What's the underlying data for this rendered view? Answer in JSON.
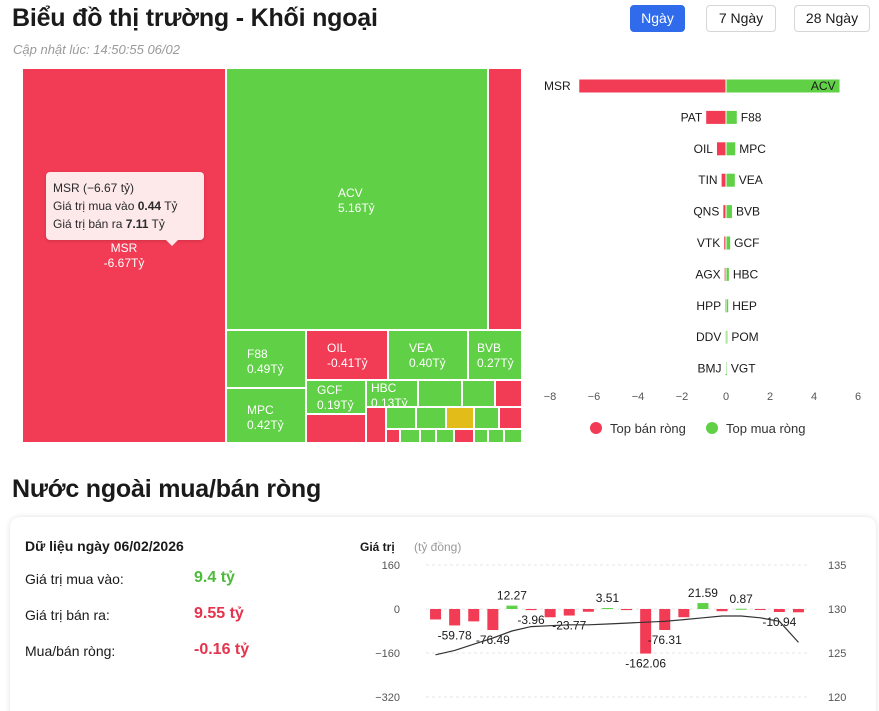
{
  "header": {
    "title": "Biểu đồ thị trường - Khối ngoại",
    "update_label": "Cập nhật lúc:",
    "update_time": "14:50:55 06/02",
    "periods": [
      "Ngày",
      "7 Ngày",
      "28 Ngày"
    ],
    "active_period": "Ngày"
  },
  "colors": {
    "sell": "#f23b54",
    "buy": "#60d046",
    "neutral": "#e2bd1a",
    "accent": "#2f6bea"
  },
  "treemap": {
    "tiles": [
      {
        "label": "MSR",
        "value": "-6.67Tỷ",
        "side": "sell"
      },
      {
        "label": "ACV",
        "value": "5.16Tỷ",
        "side": "buy"
      },
      {
        "label": "",
        "value": "",
        "side": "sell"
      },
      {
        "label": "F88",
        "value": "0.49Tỷ",
        "side": "buy"
      },
      {
        "label": "MPC",
        "value": "0.42Tỷ",
        "side": "buy"
      },
      {
        "label": "OIL",
        "value": "-0.41Tỷ",
        "side": "sell"
      },
      {
        "label": "VEA",
        "value": "0.40Tỷ",
        "side": "buy"
      },
      {
        "label": "BVB",
        "value": "0.27Tỷ",
        "side": "buy"
      },
      {
        "label": "GCF",
        "value": "0.19Tỷ",
        "side": "buy"
      },
      {
        "label": "HBC",
        "value": "0.13Tỷ",
        "side": "buy"
      }
    ],
    "tooltip": {
      "title": "MSR (−6.67 tỷ)",
      "buy_label": "Giá trị mua vào",
      "buy_value": "0.44",
      "sell_label": "Giá trị bán ra",
      "sell_value": "7.11",
      "unit": "Tỷ"
    }
  },
  "chart_data": [
    {
      "type": "bar",
      "orientation": "horizontal-diverging",
      "rows": [
        {
          "sell": "MSR",
          "sell_value": -6.67,
          "buy": "ACV",
          "buy_value": 5.16
        },
        {
          "sell": "PAT",
          "sell_value": -0.9,
          "buy": "F88",
          "buy_value": 0.49
        },
        {
          "sell": "OIL",
          "sell_value": -0.41,
          "buy": "MPC",
          "buy_value": 0.42
        },
        {
          "sell": "TIN",
          "sell_value": -0.2,
          "buy": "VEA",
          "buy_value": 0.4
        },
        {
          "sell": "QNS",
          "sell_value": -0.12,
          "buy": "BVB",
          "buy_value": 0.27
        },
        {
          "sell": "VTK",
          "sell_value": -0.08,
          "buy": "GCF",
          "buy_value": 0.19
        },
        {
          "sell": "AGX",
          "sell_value": -0.06,
          "buy": "HBC",
          "buy_value": 0.13
        },
        {
          "sell": "HPP",
          "sell_value": -0.04,
          "buy": "HEP",
          "buy_value": 0.1
        },
        {
          "sell": "DDV",
          "sell_value": -0.03,
          "buy": "POM",
          "buy_value": 0.06
        },
        {
          "sell": "BMJ",
          "sell_value": -0.02,
          "buy": "VGT",
          "buy_value": 0.04
        }
      ],
      "xticks": [
        -8,
        -6,
        -4,
        -2,
        0,
        2,
        4,
        6
      ],
      "xlim": [
        -8,
        6
      ],
      "legend": [
        {
          "name": "Top bán ròng",
          "side": "sell"
        },
        {
          "name": "Top mua ròng",
          "side": "buy"
        }
      ],
      "legend_position": "bottom"
    },
    {
      "type": "bar",
      "title": "Giá trị",
      "unit": "(tỷ đồng)",
      "y_left_ticks": [
        160,
        0,
        -160,
        -320
      ],
      "y_left_lim": [
        -320,
        160
      ],
      "y_right_ticks": [
        135,
        130,
        125,
        120
      ],
      "y_right_lim": [
        120,
        135
      ],
      "bars": [
        -38,
        -59.78,
        -45,
        -76.49,
        12.27,
        -3.96,
        -30,
        -23.77,
        -10,
        3.51,
        -4,
        -162.06,
        -76.31,
        -30,
        21.59,
        -8,
        0.87,
        -3,
        -10.94,
        -12
      ],
      "bar_labels": [
        null,
        "-59.78",
        null,
        "-76.49",
        "12.27",
        "-3.96",
        null,
        "-23.77",
        null,
        "3.51",
        null,
        "-162.06",
        "-76.31",
        null,
        "21.59",
        null,
        "0.87",
        null,
        "-10.94",
        null
      ],
      "line": [
        124.8,
        125.3,
        126,
        126.7,
        127.5,
        128,
        128.1,
        128.2,
        128.2,
        128.3,
        128.4,
        128.5,
        128.6,
        128.8,
        129,
        129.2,
        129.2,
        129.0,
        128.6,
        126.2
      ]
    }
  ],
  "net_section": {
    "title": "Nước ngoài mua/bán ròng",
    "data_heading": "Dữ liệu ngày 06/02/2026",
    "buy_label": "Giá trị mua vào:",
    "buy_value": "9.4 tỷ",
    "sell_label": "Giá trị bán ra:",
    "sell_value": "9.55 tỷ",
    "net_label": "Mua/bán ròng:",
    "net_value": "-0.16 tỷ"
  }
}
